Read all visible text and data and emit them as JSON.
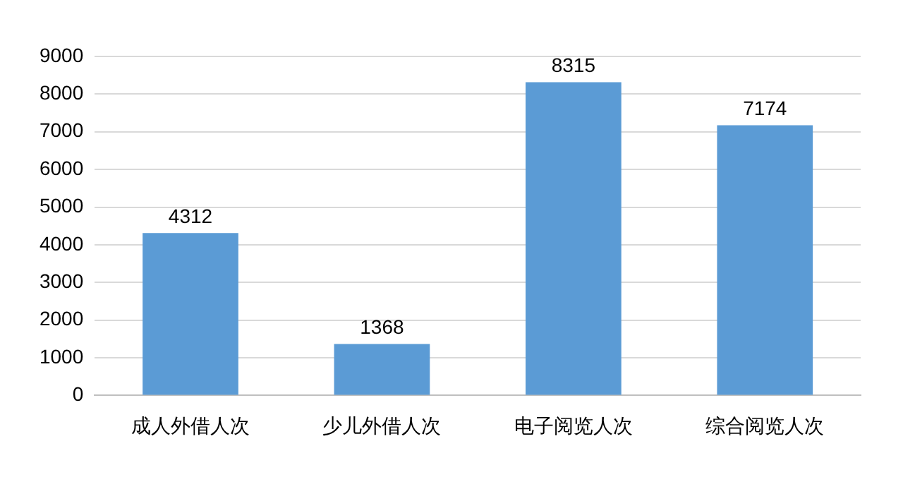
{
  "chart_data": {
    "type": "bar",
    "categories": [
      "成人外借人次",
      "少儿外借人次",
      "电子阅览人次",
      "综合阅览人次"
    ],
    "values": [
      4312,
      1368,
      8315,
      7174
    ],
    "color": "#5b9bd5",
    "ylim": [
      0,
      9000
    ],
    "yticks": [
      0,
      1000,
      2000,
      3000,
      4000,
      5000,
      6000,
      7000,
      8000,
      9000
    ],
    "grid": "y",
    "legend": false,
    "data_labels": true
  }
}
